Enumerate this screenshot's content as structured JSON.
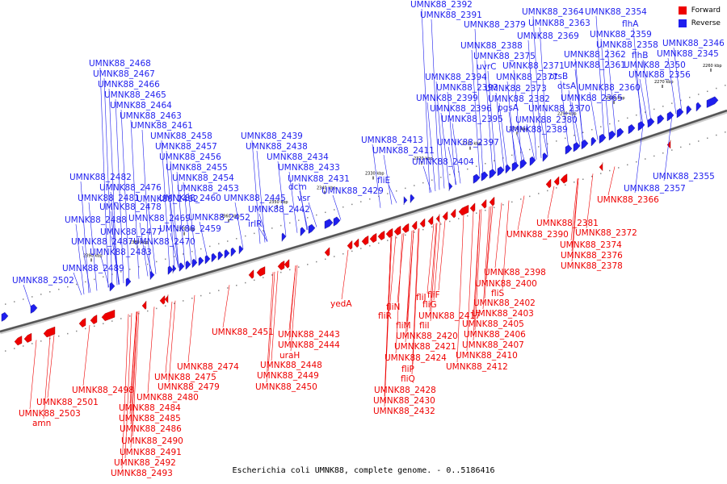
{
  "caption": "Escherichia coli UMNK88, complete genome. - 0..5186416",
  "legend": [
    {
      "label": "Forward",
      "color": "#ee0000"
    },
    {
      "label": "Reverse",
      "color": "#1f1fee"
    }
  ],
  "colors": {
    "forward": "#ee0000",
    "reverse": "#1f1fee",
    "backbone": "#555555"
  },
  "ticks": [
    "2260 kbp",
    "2270 kbp",
    "2280 kbp",
    "2290 kbp",
    "2300 kbp",
    "2310 kbp",
    "2320 kbp",
    "2330 kbp",
    "2340 kbp",
    "2350 kbp",
    "2360 kbp",
    "2370 kbp",
    "2380 kbp",
    "2390 kbp"
  ],
  "reverse_labels": [
    "UMNK88_2392",
    "UMNK88_2391",
    "UMNK88_2379",
    "UMNK88_2388",
    "UMNK88_2375",
    "uvrC",
    "UMNK88_2394",
    "UMNK88_2393",
    "UMNK88_2399",
    "UMNK88_2396",
    "UMNK88_2395",
    "UMNK88_2397",
    "UMNK88_2404",
    "UMNK88_2364",
    "UMNK88_2354",
    "UMNK88_2363",
    "flhA",
    "UMNK88_2369",
    "UMNK88_2359",
    "UMNK88_2358",
    "UMNK88_2346",
    "UMNK88_2362",
    "flhB",
    "UMNK88_2345",
    "UMNK88_2371",
    "UMNK88_2361",
    "UMNK88_2350",
    "UMNK88_2377",
    "otsB",
    "UMNK88_2356",
    "UMNK88_2373",
    "otsA",
    "UMNK88_2360",
    "UMNK88_2382",
    "UMNK88_2365",
    "pgsA",
    "UMNK88_2370",
    "UMNK88_2380",
    "UMNK88_2389",
    "UMNK88_2468",
    "UMNK88_2467",
    "UMNK88_2466",
    "UMNK88_2465",
    "UMNK88_2464",
    "UMNK88_2463",
    "UMNK88_2461",
    "UMNK88_2458",
    "UMNK88_2457",
    "UMNK88_2456",
    "UMNK88_2455",
    "UMNK88_2454",
    "UMNK88_2453",
    "UMNK88_2462",
    "UMNK88_2460",
    "UMNK88_2469",
    "UMNK88_2452",
    "UMNK88_2459",
    "UMNK88_2470",
    "UMNK88_2482",
    "UMNK88_2476",
    "UMNK88_2481",
    "UMNK88_2478",
    "UMNK88_2488",
    "UMNK88_2477",
    "UMNK88_2487",
    "UMNK88_2483",
    "UMNK88_2489",
    "UMNK88_2502",
    "UMNK88_2439",
    "UMNK88_2438",
    "UMNK88_2434",
    "UMNK88_2433",
    "dcm",
    "UMNK88_2431",
    "vsr",
    "UMNK88_2429",
    "UMNK88_2445",
    "UMNK88_2442",
    "irlR",
    "UMNK88_2413",
    "UMNK88_2411",
    "fliE",
    "UMNK88_2355",
    "UMNK88_2357"
  ],
  "forward_labels": [
    "UMNK88_2366",
    "UMNK88_2381",
    "UMNK88_2390",
    "UMNK88_2372",
    "UMNK88_2374",
    "UMNK88_2376",
    "UMNK88_2378",
    "UMNK88_2398",
    "UMNK88_2400",
    "fliS",
    "UMNK88_2402",
    "UMNK88_2403",
    "UMNK88_2405",
    "UMNK88_2406",
    "UMNK88_2407",
    "UMNK88_2410",
    "UMNK88_2412",
    "fliJ",
    "fliF",
    "fliN",
    "fliG",
    "fliR",
    "UMNK88_2417",
    "fliM",
    "fliI",
    "UMNK88_2420",
    "UMNK88_2421",
    "UMNK88_2424",
    "fliP",
    "fliQ",
    "UMNK88_2428",
    "UMNK88_2430",
    "UMNK88_2432",
    "yedA",
    "UMNK88_2451",
    "UMNK88_2443",
    "UMNK88_2444",
    "uraH",
    "UMNK88_2448",
    "UMNK88_2449",
    "UMNK88_2450",
    "UMNK88_2474",
    "UMNK88_2475",
    "UMNK88_2479",
    "UMNK88_2498",
    "UMNK88_2480",
    "UMNK88_2484",
    "UMNK88_2485",
    "UMNK88_2486",
    "UMNK88_2490",
    "UMNK88_2491",
    "UMNK88_2492",
    "UMNK88_2493",
    "UMNK88_2501",
    "UMNK88_2503",
    "amn"
  ]
}
